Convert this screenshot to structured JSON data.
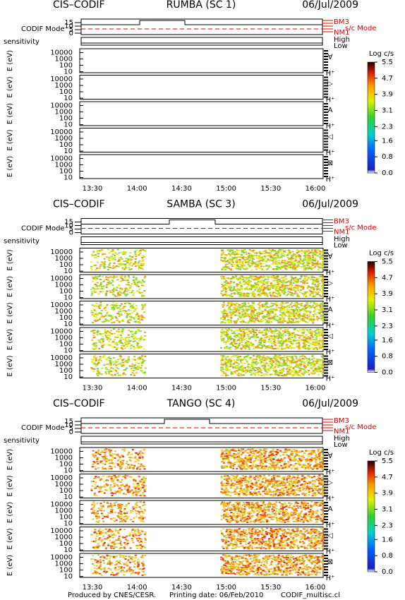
{
  "blocks": [
    {
      "instrument": "CIS–CODIF",
      "spacecraft": "RUMBA (SC 1)",
      "date": "06/Jul/2009"
    },
    {
      "instrument": "CIS–CODIF",
      "spacecraft": "SAMBA (SC 3)",
      "date": "06/Jul/2009"
    },
    {
      "instrument": "CIS–CODIF",
      "spacecraft": "TANGO (SC 4)",
      "date": "06/Jul/2009"
    }
  ],
  "mode": {
    "label": "CODIF Mode",
    "ylim": [
      -2,
      20
    ],
    "yticks": [
      15,
      10,
      5,
      0
    ],
    "bm3": "BM3",
    "nm1": "NM1",
    "sc_mode": "s/c Mode"
  },
  "sensitivity": {
    "label": "sensitivity",
    "high": "High",
    "low": "Low"
  },
  "energy": {
    "label": "E (eV)",
    "log_scale": true,
    "ylim": [
      7,
      40000
    ],
    "yticks": [
      10000,
      1000,
      100,
      10
    ]
  },
  "panels": [
    {
      "symbol": "∀",
      "species": "H⁺"
    },
    {
      "symbol": "▷",
      "species": "H⁺"
    },
    {
      "symbol": "A",
      "species": "H⁺"
    },
    {
      "symbol": "◁",
      "species": "H⁺"
    },
    {
      "symbol": "⊠",
      "species": "H⁺"
    }
  ],
  "colorbar": {
    "title": "Log c/s",
    "ylim": [
      0,
      5.5
    ],
    "yticks": [
      5.5,
      4.7,
      3.9,
      3.1,
      2.3,
      1.6,
      0.8,
      {
        "value": 0,
        "label": "0.0"
      }
    ]
  },
  "time_ticks": [
    "13:30",
    "14:00",
    "14:30",
    "15:00",
    "15:30",
    "16:00"
  ],
  "footer": {
    "produced": "Produced by CNES/CESR.",
    "printing": "Printing date: 06/Feb/2010",
    "file": "CODIF_multisc.cl"
  }
}
